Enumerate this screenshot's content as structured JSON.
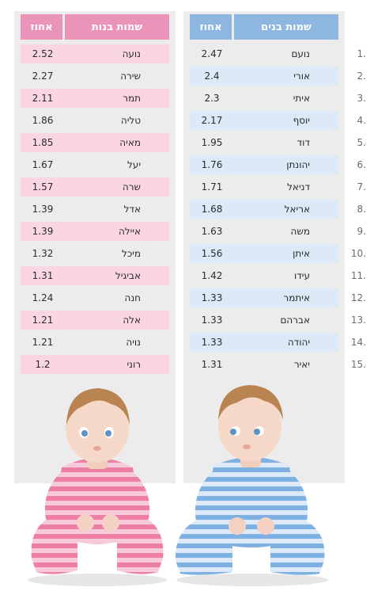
{
  "chart_data": [
    {
      "type": "table",
      "columns": [
        "שמות בנים",
        "אחוז"
      ],
      "ranks": [
        "1.",
        "2.",
        "3.",
        "4.",
        "5.",
        "6.",
        "7.",
        "8.",
        "9.",
        "10.",
        "11.",
        "12.",
        "13.",
        "14.",
        "15."
      ],
      "rows": [
        {
          "name": "נועם",
          "percent": "2.47"
        },
        {
          "name": "אורי",
          "percent": "2.4"
        },
        {
          "name": "איתי",
          "percent": "2.3"
        },
        {
          "name": "יוסף",
          "percent": "2.17"
        },
        {
          "name": "דוד",
          "percent": "1.95"
        },
        {
          "name": "יהונתן",
          "percent": "1.76"
        },
        {
          "name": "דניאל",
          "percent": "1.71"
        },
        {
          "name": "אריאל",
          "percent": "1.68"
        },
        {
          "name": "משה",
          "percent": "1.63"
        },
        {
          "name": "איתן",
          "percent": "1.56"
        },
        {
          "name": "עידו",
          "percent": "1.42"
        },
        {
          "name": "איתמר",
          "percent": "1.33"
        },
        {
          "name": "אברהם",
          "percent": "1.33"
        },
        {
          "name": "יהודה",
          "percent": "1.33"
        },
        {
          "name": "יאיר",
          "percent": "1.31"
        }
      ]
    },
    {
      "type": "table",
      "columns": [
        "שמות בנות",
        "אחוז"
      ],
      "rows": [
        {
          "name": "נועה",
          "percent": "2.52"
        },
        {
          "name": "שירה",
          "percent": "2.27"
        },
        {
          "name": "תמר",
          "percent": "2.11"
        },
        {
          "name": "טליה",
          "percent": "1.86"
        },
        {
          "name": "מאיה",
          "percent": "1.85"
        },
        {
          "name": "יעל",
          "percent": "1.67"
        },
        {
          "name": "שרה",
          "percent": "1.57"
        },
        {
          "name": "אדל",
          "percent": "1.39"
        },
        {
          "name": "איילה",
          "percent": "1.39"
        },
        {
          "name": "מיכל",
          "percent": "1.32"
        },
        {
          "name": "אביגיל",
          "percent": "1.31"
        },
        {
          "name": "חנה",
          "percent": "1.24"
        },
        {
          "name": "אלה",
          "percent": "1.21"
        },
        {
          "name": "נויה",
          "percent": "1.21"
        },
        {
          "name": "רוני",
          "percent": "1.2"
        }
      ]
    }
  ],
  "colors": {
    "boys_header": "#8db6e0",
    "boys_row_stripe": "#dce9f6",
    "girls_header": "#e994b8",
    "girls_row_stripe": "#fad6e3",
    "panel_background": "#ececec"
  },
  "images": {
    "left": "baby-girl-in-pink-striped-pajamas",
    "right": "baby-boy-in-blue-striped-pajamas"
  }
}
